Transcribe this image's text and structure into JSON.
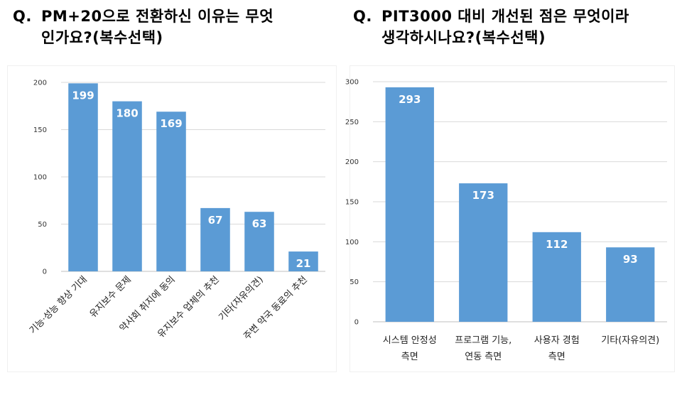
{
  "questions": [
    {
      "prefix": "Q.",
      "lines": [
        "PM+20으로 전환하신 이유는 무엇",
        "인가요?(복수선택)"
      ]
    },
    {
      "prefix": "Q.",
      "lines": [
        "PIT3000 대비 개선된 점은 무엇이라",
        "생각하시나요?(복수선택)"
      ]
    }
  ],
  "colors": {
    "bar": "#5b9bd5",
    "data_label": "#ffffff"
  },
  "chart_data": [
    {
      "type": "bar",
      "categories": [
        "기능·성능 향상 기대",
        "유지보수 문제",
        "약사회 취지에 동의",
        "유지보수 업체의 추천",
        "기타(자유의견)",
        "주변 약국 동료의 추천"
      ],
      "values": [
        199,
        180,
        169,
        67,
        63,
        21
      ],
      "ylim": [
        0,
        200
      ],
      "yticks": [
        0,
        50,
        100,
        150,
        200
      ],
      "grid": true,
      "data_labels": true
    },
    {
      "type": "bar",
      "categories": [
        [
          "시스템 안정성",
          "측면"
        ],
        [
          "프로그램 기능,",
          "연동 측면"
        ],
        [
          "사용자 경험",
          "측면"
        ],
        [
          "기타(자유의견)"
        ]
      ],
      "values": [
        293,
        173,
        112,
        93
      ],
      "ylim": [
        0,
        300
      ],
      "yticks": [
        0,
        50,
        100,
        150,
        200,
        250,
        300
      ],
      "grid": true,
      "data_labels": true
    }
  ]
}
